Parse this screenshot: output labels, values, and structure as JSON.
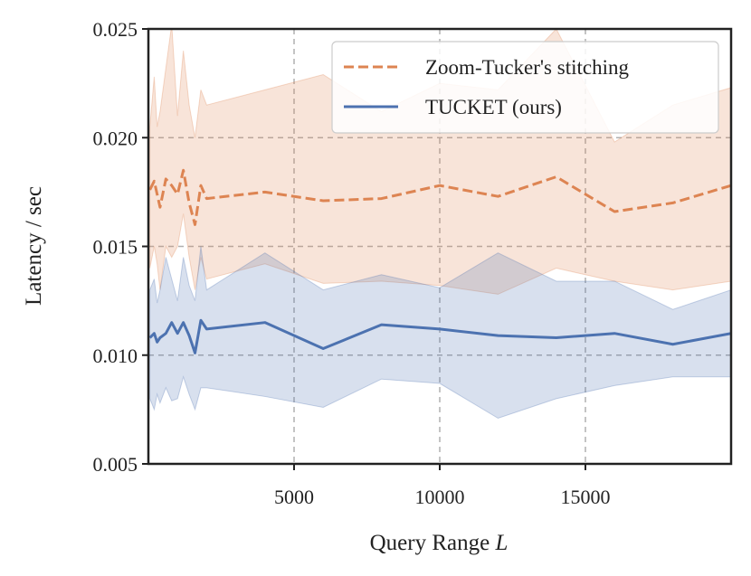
{
  "chart_data": {
    "type": "line",
    "xlabel": "Query Range",
    "xlabel_var": "L",
    "ylabel": "Latency / sec",
    "xlim": [
      0,
      20000
    ],
    "ylim": [
      0.005,
      0.025
    ],
    "xticks": [
      5000,
      10000,
      15000
    ],
    "xtick_labels": [
      "5000",
      "10000",
      "15000"
    ],
    "yticks": [
      0.005,
      0.01,
      0.015,
      0.02,
      0.025
    ],
    "ytick_labels": [
      "0.005",
      "0.010",
      "0.015",
      "0.020",
      "0.025"
    ],
    "grid": true,
    "legend_position": "top-right",
    "series": [
      {
        "name": "Zoom-Tucker's stitching",
        "color": "#dd8452",
        "line_style": "dashed",
        "x": [
          50,
          200,
          300,
          400,
          600,
          800,
          1000,
          1200,
          1400,
          1600,
          1800,
          2000,
          4000,
          6000,
          8000,
          10000,
          12000,
          14000,
          16000,
          18000,
          20000
        ],
        "y": [
          0.0176,
          0.018,
          0.0174,
          0.0168,
          0.0181,
          0.0178,
          0.0174,
          0.0185,
          0.017,
          0.016,
          0.0178,
          0.0172,
          0.0175,
          0.0171,
          0.0172,
          0.0178,
          0.0173,
          0.0182,
          0.0166,
          0.017,
          0.0178
        ],
        "lower": [
          0.014,
          0.015,
          0.0142,
          0.013,
          0.015,
          0.0145,
          0.015,
          0.0165,
          0.0145,
          0.013,
          0.0145,
          0.0135,
          0.0142,
          0.0133,
          0.0134,
          0.0132,
          0.0128,
          0.014,
          0.0134,
          0.013,
          0.0134
        ],
        "upper": [
          0.0205,
          0.0228,
          0.0205,
          0.0212,
          0.0232,
          0.0252,
          0.021,
          0.024,
          0.0215,
          0.02,
          0.0222,
          0.0215,
          0.0222,
          0.0229,
          0.0212,
          0.0225,
          0.0222,
          0.025,
          0.0198,
          0.0215,
          0.0223
        ]
      },
      {
        "name": "TUCKET (ours)",
        "color": "#4c72b0",
        "line_style": "solid",
        "x": [
          50,
          200,
          300,
          400,
          600,
          800,
          1000,
          1200,
          1400,
          1600,
          1800,
          2000,
          4000,
          6000,
          8000,
          10000,
          12000,
          14000,
          16000,
          18000,
          20000
        ],
        "y": [
          0.0108,
          0.011,
          0.0106,
          0.0108,
          0.011,
          0.0115,
          0.011,
          0.0115,
          0.0109,
          0.0101,
          0.0116,
          0.0112,
          0.0115,
          0.0103,
          0.0114,
          0.0112,
          0.0109,
          0.0108,
          0.011,
          0.0105,
          0.011
        ],
        "lower": [
          0.008,
          0.0075,
          0.0082,
          0.0078,
          0.0085,
          0.0079,
          0.008,
          0.009,
          0.0082,
          0.0075,
          0.0085,
          0.0085,
          0.0081,
          0.0076,
          0.0089,
          0.0087,
          0.0071,
          0.008,
          0.0086,
          0.009,
          0.009
        ],
        "upper": [
          0.013,
          0.0135,
          0.0124,
          0.013,
          0.0145,
          0.0135,
          0.0125,
          0.0145,
          0.0132,
          0.0125,
          0.015,
          0.013,
          0.0147,
          0.013,
          0.0137,
          0.0131,
          0.0147,
          0.0134,
          0.0134,
          0.0121,
          0.013
        ]
      }
    ]
  }
}
